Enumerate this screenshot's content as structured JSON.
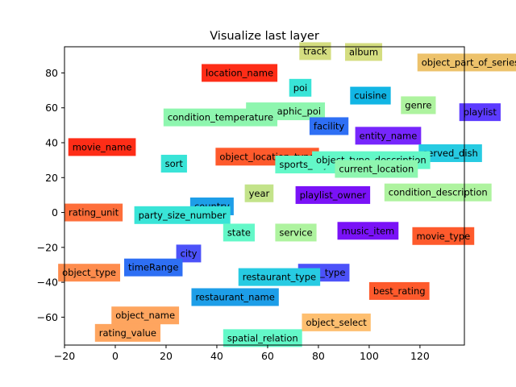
{
  "chart_data": {
    "type": "scatter",
    "title": "Visualize last layer",
    "xlabel": "",
    "ylabel": "",
    "xlim": [
      -20,
      137.5
    ],
    "ylim": [
      -76,
      95
    ],
    "xticks": [
      -20,
      0,
      20,
      40,
      60,
      80,
      100,
      120
    ],
    "yticks": [
      -60,
      -40,
      -20,
      0,
      20,
      40,
      60,
      80
    ],
    "grid": false,
    "points": [
      {
        "label": "track",
        "x": 72.5,
        "y": 92.5,
        "color": "#d4dd80"
      },
      {
        "label": "album",
        "x": 90.5,
        "y": 92.0,
        "color": "#d4dd80"
      },
      {
        "label": "object_part_of_series_type",
        "x": 119.0,
        "y": 86.0,
        "color": "#edc26b"
      },
      {
        "label": "location_name",
        "x": 34.0,
        "y": 80.0,
        "color": "#fe2d17"
      },
      {
        "label": "poi",
        "x": 68.5,
        "y": 71.5,
        "color": "#39e4d7"
      },
      {
        "label": "cuisine",
        "x": 92.5,
        "y": 67.0,
        "color": "#11b5e4"
      },
      {
        "label": "genre",
        "x": 112.5,
        "y": 61.5,
        "color": "#aef39f"
      },
      {
        "label": "playlist",
        "x": 135.5,
        "y": 57.5,
        "color": "#5c3bff"
      },
      {
        "label": "geographic_poi",
        "x": 51.5,
        "y": 58.0,
        "color": "#8ef6af"
      },
      {
        "label": "condition_temperature",
        "x": 19.0,
        "y": 54.5,
        "color": "#8ef6af"
      },
      {
        "label": "facility",
        "x": 76.5,
        "y": 49.5,
        "color": "#2e6ff4"
      },
      {
        "label": "entity_name",
        "x": 94.5,
        "y": 44.0,
        "color": "#7626fc"
      },
      {
        "label": "movie_name",
        "x": -18.5,
        "y": 37.5,
        "color": "#fe2d17"
      },
      {
        "label": "object_location_type",
        "x": 39.5,
        "y": 32.0,
        "color": "#fe5a2c"
      },
      {
        "label": "served_dish",
        "x": 119.5,
        "y": 34.0,
        "color": "#27cbe2"
      },
      {
        "label": "sort",
        "x": 18.0,
        "y": 28.0,
        "color": "#39e4d7"
      },
      {
        "label": "sports_object_type",
        "x": 63.0,
        "y": 27.5,
        "color": "#63f8c8"
      },
      {
        "label": "object_type_description",
        "x": 77.5,
        "y": 30.0,
        "color": "#63f8c8"
      },
      {
        "label": "current_location",
        "x": 86.5,
        "y": 25.0,
        "color": "#8ef6af"
      },
      {
        "label": "year",
        "x": 51.0,
        "y": 11.0,
        "color": "#c3e38a"
      },
      {
        "label": "playlist_owner",
        "x": 71.0,
        "y": 10.0,
        "color": "#7a12f7"
      },
      {
        "label": "condition_description",
        "x": 106.0,
        "y": 11.5,
        "color": "#aef39f"
      },
      {
        "label": "country",
        "x": 29.5,
        "y": 3.5,
        "color": "#1d9ee8"
      },
      {
        "label": "rating_unit",
        "x": -20.0,
        "y": 0.0,
        "color": "#fe6e3a"
      },
      {
        "label": "party_size_number",
        "x": 7.5,
        "y": -1.5,
        "color": "#39e4d7"
      },
      {
        "label": "state",
        "x": 42.5,
        "y": -11.5,
        "color": "#63f8c8"
      },
      {
        "label": "service",
        "x": 63.0,
        "y": -11.5,
        "color": "#aef39f"
      },
      {
        "label": "music_item",
        "x": 87.5,
        "y": -10.5,
        "color": "#7a12f7"
      },
      {
        "label": "movie_type",
        "x": 117.0,
        "y": -13.5,
        "color": "#fe5a2c"
      },
      {
        "label": "city",
        "x": 24.0,
        "y": -23.5,
        "color": "#4c52f9"
      },
      {
        "label": "timeRange",
        "x": 3.5,
        "y": -31.5,
        "color": "#2e6ff4"
      },
      {
        "label": "object_type",
        "x": -22.5,
        "y": -34.5,
        "color": "#fe8c4d"
      },
      {
        "label": "sort_type",
        "x": 72.0,
        "y": -34.5,
        "color": "#4c52f9"
      },
      {
        "label": "restaurant_type",
        "x": 48.5,
        "y": -37.0,
        "color": "#27cbe2"
      },
      {
        "label": "best_rating",
        "x": 100.0,
        "y": -45.0,
        "color": "#fe5a2c"
      },
      {
        "label": "restaurant_name",
        "x": 30.0,
        "y": -48.5,
        "color": "#1d9ee8"
      },
      {
        "label": "object_name",
        "x": -1.5,
        "y": -59.0,
        "color": "#fea55f"
      },
      {
        "label": "object_select",
        "x": 73.5,
        "y": -63.0,
        "color": "#febf70"
      },
      {
        "label": "rating_value",
        "x": -8.0,
        "y": -69.0,
        "color": "#fea55f"
      },
      {
        "label": "spatial_relation",
        "x": 42.5,
        "y": -72.0,
        "color": "#63f8c8"
      }
    ]
  }
}
